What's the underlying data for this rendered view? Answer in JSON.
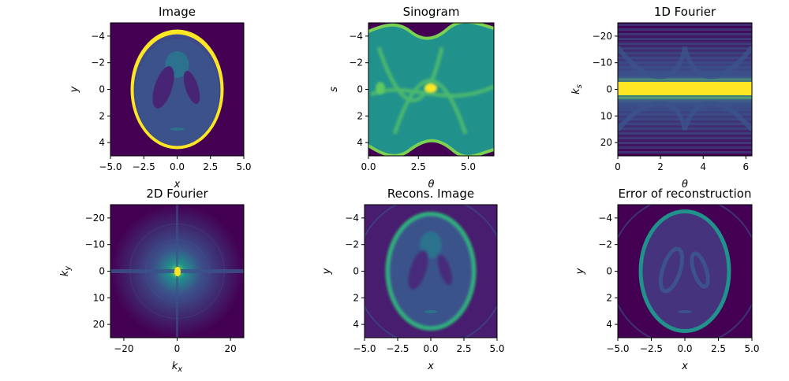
{
  "figure": {
    "background": "#ffffff"
  },
  "colormap": [
    "#440154",
    "#3b528b",
    "#21918c",
    "#5ec962",
    "#fde725"
  ],
  "chart_data": [
    {
      "type": "heatmap",
      "title": "Image",
      "xlabel": "x",
      "ylabel": "y",
      "xlim": [
        -5.0,
        5.0
      ],
      "ylim": [
        5.0,
        -5.0
      ],
      "xticks": [
        -5.0,
        -2.5,
        0.0,
        2.5,
        5.0
      ],
      "xtick_labels": [
        "−5.0",
        "−2.5",
        "0.0",
        "2.5",
        "5.0"
      ],
      "yticks": [
        -4,
        -2,
        0,
        2,
        4
      ],
      "ytick_labels": [
        "−4",
        "−2",
        "0",
        "2",
        "4"
      ],
      "content": "Shepp-Logan phantom: bright outer ellipse ring on dark background, medium interior with two dark ellipses"
    },
    {
      "type": "heatmap",
      "title": "Sinogram",
      "xlabel": "θ",
      "ylabel": "s",
      "xlim": [
        0,
        6.283
      ],
      "ylim": [
        5.0,
        -5.0
      ],
      "xticks": [
        0.0,
        2.5,
        5.0
      ],
      "xtick_labels": [
        "0.0",
        "2.5",
        "5.0"
      ],
      "yticks": [
        -4,
        -2,
        0,
        2,
        4
      ],
      "ytick_labels": [
        "−4",
        "−2",
        "0",
        "2",
        "4"
      ],
      "content": "Radon transform of phantom: sinusoidal bands between s≈±4.5"
    },
    {
      "type": "heatmap",
      "title": "1D Fourier",
      "xlabel": "θ",
      "ylabel": "k_s",
      "xlim": [
        0,
        6.283
      ],
      "ylim": [
        25,
        -25
      ],
      "xticks": [
        0,
        2,
        4,
        6
      ],
      "xtick_labels": [
        "0",
        "2",
        "4",
        "6"
      ],
      "yticks": [
        -20,
        -10,
        0,
        10,
        20
      ],
      "ytick_labels": [
        "−20",
        "−10",
        "0",
        "10",
        "20"
      ],
      "content": "Bright horizontal band at k_s≈0 with oscillating fringes"
    },
    {
      "type": "heatmap",
      "title": "2D Fourier",
      "xlabel": "k_x",
      "ylabel": "k_y",
      "xlim": [
        -25,
        25
      ],
      "ylim": [
        25,
        -25
      ],
      "xticks": [
        -20,
        0,
        20
      ],
      "xtick_labels": [
        "−20",
        "0",
        "20"
      ],
      "yticks": [
        -20,
        -10,
        0,
        10,
        20
      ],
      "ytick_labels": [
        "−20",
        "−10",
        "0",
        "10",
        "20"
      ],
      "content": "Bright peak at origin with concentric ripples"
    },
    {
      "type": "heatmap",
      "title": "Recons. Image",
      "xlabel": "x",
      "ylabel": "y",
      "xlim": [
        -5.0,
        5.0
      ],
      "ylim": [
        5.0,
        -5.0
      ],
      "xticks": [
        -5.0,
        -2.5,
        0.0,
        2.5,
        5.0
      ],
      "xtick_labels": [
        "−5.0",
        "−2.5",
        "0.0",
        "2.5",
        "5.0"
      ],
      "yticks": [
        -4,
        -2,
        0,
        2,
        4
      ],
      "ytick_labels": [
        "−4",
        "−2",
        "0",
        "2",
        "4"
      ],
      "content": "Reconstructed phantom, blurred ring and interior"
    },
    {
      "type": "heatmap",
      "title": "Error of reconstruction",
      "xlabel": "x",
      "ylabel": "y",
      "xlim": [
        -5.0,
        5.0
      ],
      "ylim": [
        5.0,
        -5.0
      ],
      "xticks": [
        -5.0,
        -2.5,
        0.0,
        2.5,
        5.0
      ],
      "xtick_labels": [
        "−5.0",
        "−2.5",
        "0.0",
        "2.5",
        "5.0"
      ],
      "yticks": [
        -4,
        -2,
        0,
        2,
        4
      ],
      "ytick_labels": [
        "−4",
        "−2",
        "0",
        "2",
        "4"
      ],
      "content": "Error concentrated on outer ring and inner ellipse edges"
    }
  ]
}
